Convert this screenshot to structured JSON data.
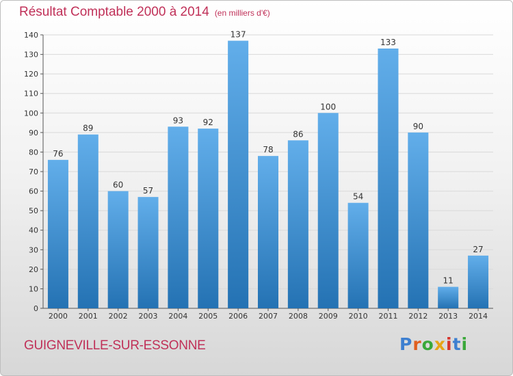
{
  "title": "Résultat Comptable 2000 à 2014",
  "unit_note": "(en milliers d'€)",
  "commune": "GUIGNEVILLE-SUR-ESSONNE",
  "logo_text": "Proxiti",
  "colors": {
    "bar_light": "#62aeea",
    "bar_dark": "#2472b3",
    "title": "#c03058",
    "grid": "#d9d9d9"
  },
  "chart_data": {
    "type": "bar",
    "title": "Résultat Comptable 2000 à 2014",
    "xlabel": "",
    "ylabel": "",
    "categories": [
      "2000",
      "2001",
      "2002",
      "2003",
      "2004",
      "2005",
      "2006",
      "2007",
      "2008",
      "2009",
      "2010",
      "2011",
      "2012",
      "2013",
      "2014"
    ],
    "values": [
      76,
      89,
      60,
      57,
      93,
      92,
      137,
      78,
      86,
      100,
      54,
      133,
      90,
      11,
      27
    ],
    "ylim": [
      0,
      140
    ],
    "yticks": [
      0,
      10,
      20,
      30,
      40,
      50,
      60,
      70,
      80,
      90,
      100,
      110,
      120,
      130,
      140
    ],
    "grid": true,
    "legend": "none"
  }
}
